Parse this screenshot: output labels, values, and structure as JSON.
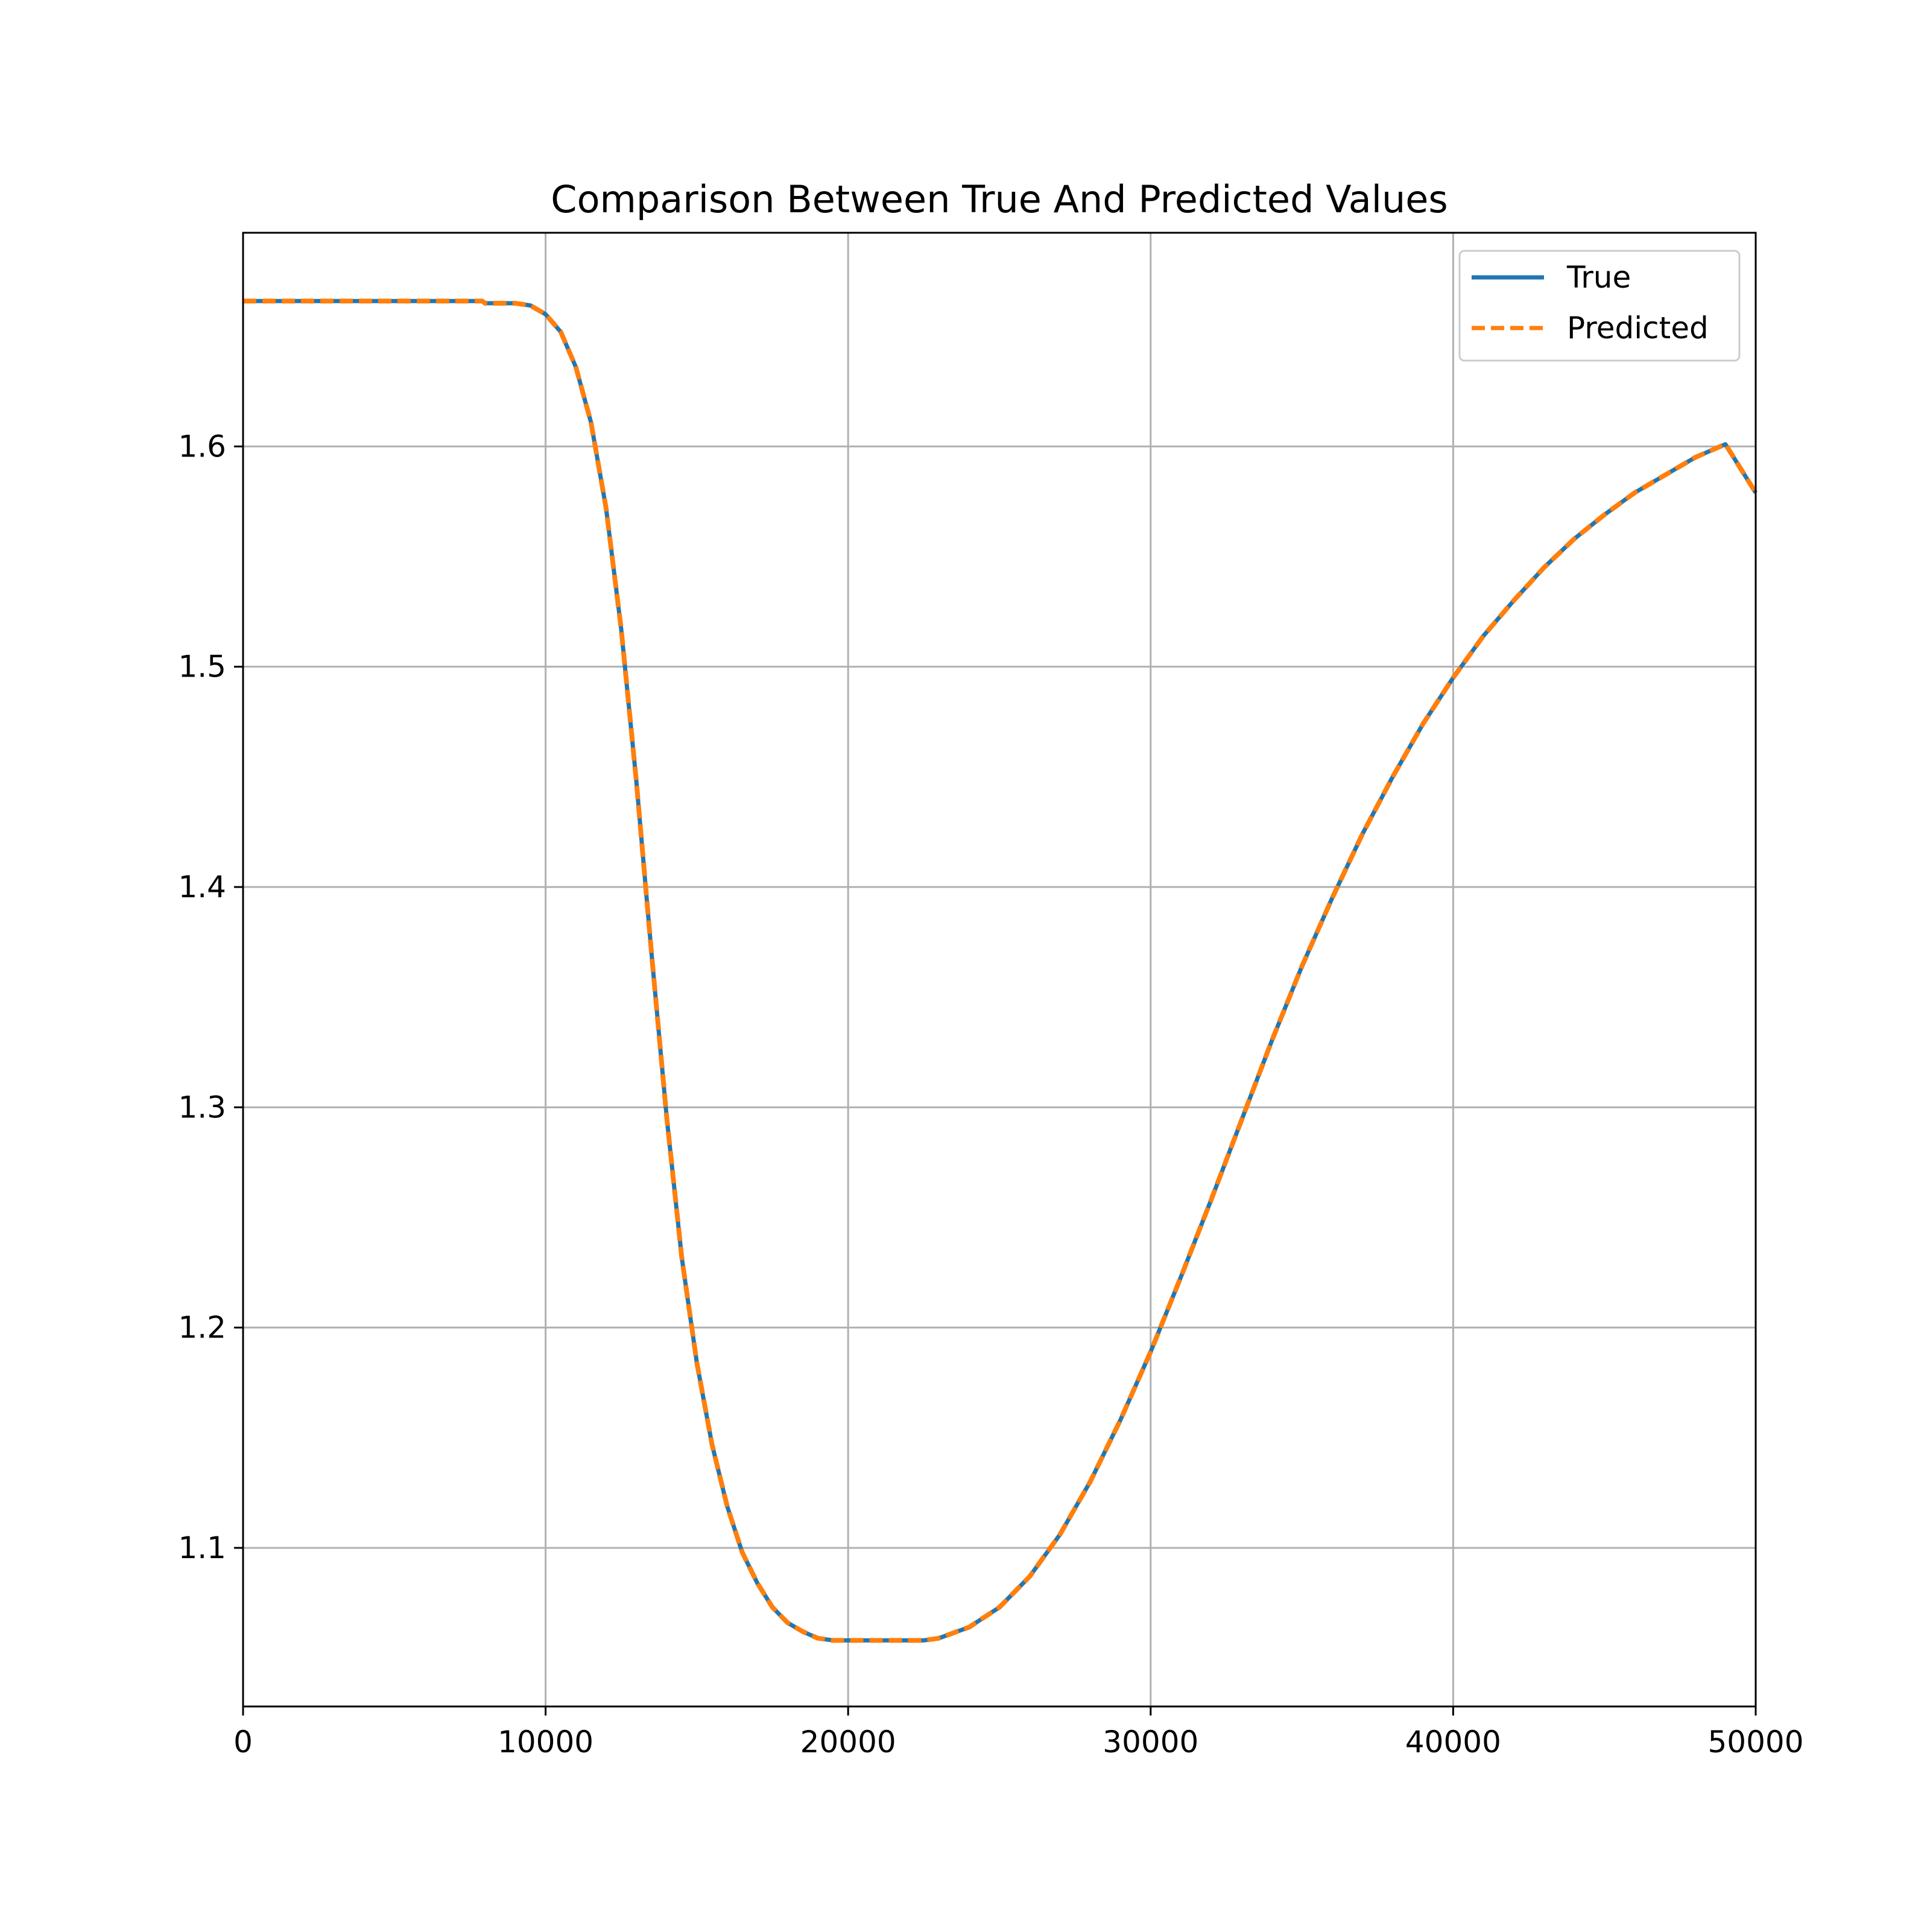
{
  "chart_data": {
    "type": "line",
    "title": "Comparison Between True And Predicted Values",
    "xlabel": "",
    "ylabel": "",
    "xlim": [
      0,
      50000
    ],
    "ylim": [
      1.028,
      1.697
    ],
    "xticks": [
      0,
      10000,
      20000,
      30000,
      40000,
      50000
    ],
    "xtick_labels": [
      "0",
      "10000",
      "20000",
      "30000",
      "40000",
      "50000"
    ],
    "yticks": [
      1.1,
      1.2,
      1.3,
      1.4,
      1.5,
      1.6
    ],
    "ytick_labels": [
      "1.1",
      "1.2",
      "1.3",
      "1.4",
      "1.5",
      "1.6"
    ],
    "grid": true,
    "legend_position": "top-right",
    "x": [
      0,
      2000,
      4000,
      6000,
      7900,
      8000,
      9000,
      9500,
      10000,
      10500,
      11000,
      11500,
      12000,
      12500,
      13000,
      13500,
      14000,
      14500,
      15000,
      15500,
      16000,
      16500,
      17000,
      17500,
      18000,
      18500,
      19000,
      19500,
      20000,
      20500,
      21000,
      21500,
      22000,
      22500,
      23000,
      24000,
      25000,
      26000,
      27000,
      28000,
      29000,
      30000,
      31000,
      32000,
      33000,
      34000,
      35000,
      36000,
      37000,
      38000,
      39000,
      40000,
      41000,
      42000,
      43000,
      44000,
      45000,
      46000,
      47000,
      48000,
      49000,
      50000
    ],
    "series": [
      {
        "name": "True",
        "color": "#1f77b4",
        "style": "solid",
        "values": [
          1.666,
          1.666,
          1.666,
          1.666,
          1.666,
          1.665,
          1.665,
          1.664,
          1.66,
          1.652,
          1.636,
          1.611,
          1.572,
          1.517,
          1.448,
          1.37,
          1.296,
          1.232,
          1.184,
          1.147,
          1.119,
          1.098,
          1.084,
          1.073,
          1.066,
          1.062,
          1.059,
          1.058,
          1.058,
          1.058,
          1.058,
          1.058,
          1.058,
          1.058,
          1.059,
          1.064,
          1.073,
          1.087,
          1.106,
          1.13,
          1.158,
          1.189,
          1.223,
          1.258,
          1.294,
          1.33,
          1.364,
          1.395,
          1.424,
          1.45,
          1.474,
          1.495,
          1.514,
          1.53,
          1.545,
          1.558,
          1.569,
          1.579,
          1.587,
          1.595,
          1.601,
          1.579
        ]
      },
      {
        "name": "Predicted",
        "color": "#ff7f0e",
        "style": "dashed",
        "values": [
          1.666,
          1.666,
          1.666,
          1.666,
          1.666,
          1.665,
          1.665,
          1.664,
          1.66,
          1.652,
          1.636,
          1.611,
          1.572,
          1.517,
          1.448,
          1.37,
          1.296,
          1.232,
          1.184,
          1.147,
          1.119,
          1.098,
          1.084,
          1.073,
          1.066,
          1.062,
          1.059,
          1.058,
          1.058,
          1.058,
          1.058,
          1.058,
          1.058,
          1.058,
          1.059,
          1.064,
          1.073,
          1.087,
          1.106,
          1.13,
          1.158,
          1.189,
          1.223,
          1.258,
          1.294,
          1.33,
          1.364,
          1.395,
          1.424,
          1.45,
          1.474,
          1.495,
          1.514,
          1.53,
          1.545,
          1.558,
          1.569,
          1.579,
          1.587,
          1.595,
          1.601,
          1.579
        ]
      }
    ]
  }
}
